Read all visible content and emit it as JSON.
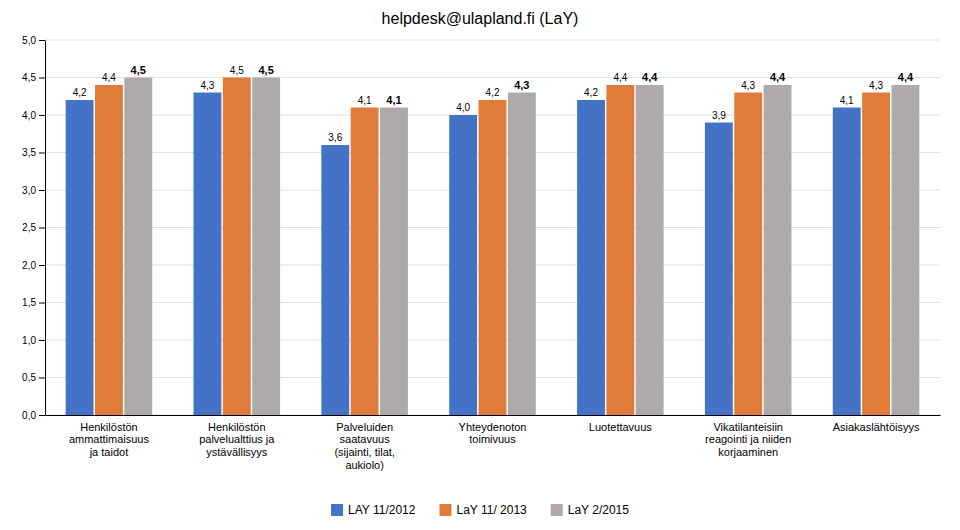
{
  "chart_data": {
    "type": "bar",
    "title": "helpdesk@ulapland.fi (LaY)",
    "categories": [
      "Henkilöstön\nammattimaisuus\nja taidot",
      "Henkilöstön\npalvelualttius ja\nystävällisyys",
      "Palveluiden\nsaatavuus\n(sijainti, tilat,\naukiolo)",
      "Yhteydenoton\ntoimivuus",
      "Luotettavuus",
      "Vikatilanteisiin\nreagointi ja niiden\nkorjaaminen",
      "Asiakaslähtöisyys"
    ],
    "series": [
      {
        "name": "LAY 11/2012",
        "color": "#4472C4",
        "values": [
          4.2,
          4.3,
          3.6,
          4.0,
          4.2,
          3.9,
          4.1
        ],
        "value_labels": [
          "4,2",
          "4,3",
          "3,6",
          "4,0",
          "4,2",
          "3,9",
          "4,1"
        ]
      },
      {
        "name": "LaY 11/ 2013",
        "color": "#E07B39",
        "values": [
          4.4,
          4.5,
          4.1,
          4.2,
          4.4,
          4.3,
          4.3
        ],
        "value_labels": [
          "4,4",
          "4,5",
          "4,1",
          "4,2",
          "4,4",
          "4,3",
          "4,3"
        ]
      },
      {
        "name": "LaY 2/2015",
        "color": "#AEAAAA",
        "values": [
          4.5,
          4.5,
          4.1,
          4.3,
          4.4,
          4.4,
          4.4
        ],
        "value_labels": [
          "4,5",
          "4,5",
          "4,1",
          "4,3",
          "4,4",
          "4,4",
          "4,4"
        ]
      }
    ],
    "ylim": [
      0,
      5.0
    ],
    "yticks": [
      {
        "value": 0.0,
        "label": "0,0"
      },
      {
        "value": 0.5,
        "label": "0,5"
      },
      {
        "value": 1.0,
        "label": "1,0"
      },
      {
        "value": 1.5,
        "label": "1,5"
      },
      {
        "value": 2.0,
        "label": "2,0"
      },
      {
        "value": 2.5,
        "label": "2,5"
      },
      {
        "value": 3.0,
        "label": "3,0"
      },
      {
        "value": 3.5,
        "label": "3,5"
      },
      {
        "value": 4.0,
        "label": "4,0"
      },
      {
        "value": 4.5,
        "label": "4,5"
      },
      {
        "value": 5.0,
        "label": "5,0"
      }
    ],
    "grid": true,
    "data_labels": true,
    "legend": "bottom"
  }
}
